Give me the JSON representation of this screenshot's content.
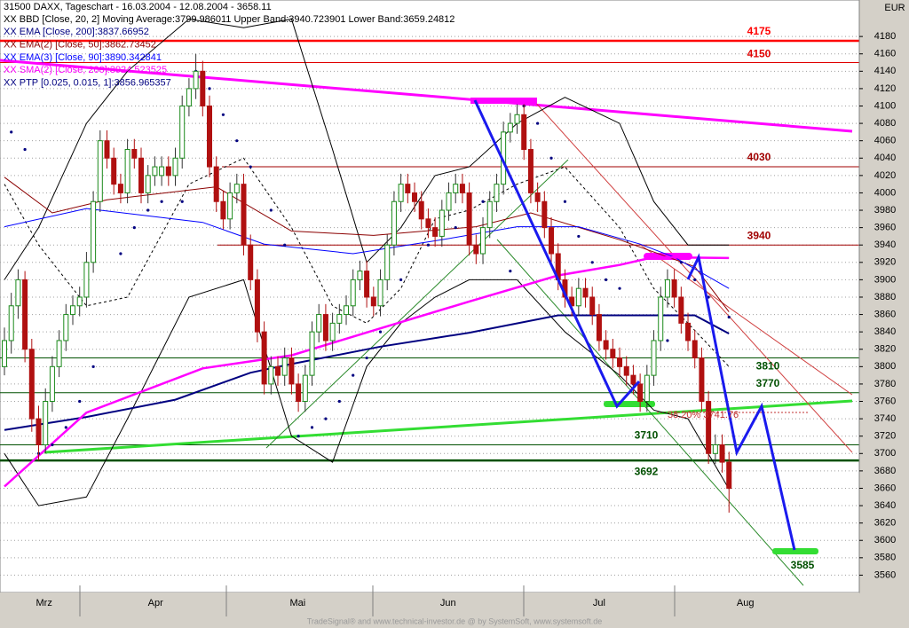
{
  "chart_data": {
    "type": "candlestick",
    "title": "31500  DAXX, Tageschart - 16.03.2004 - 12.08.2004 - 3658.11",
    "unit": "EUR",
    "footer": "TradeSignal® and www.technical-investor.de @ by SystemSoft, www.systemsoft.de",
    "up_color": "#1a8a1a",
    "down_color": "#b01010",
    "ylim": [
      3540,
      4222
    ],
    "xlim": [
      -0.65,
      125.06
    ],
    "yticks": [
      3560,
      3580,
      3600,
      3620,
      3640,
      3660,
      3680,
      3700,
      3720,
      3740,
      3760,
      3780,
      3800,
      3820,
      3840,
      3860,
      3880,
      3900,
      3920,
      3940,
      3960,
      3980,
      4000,
      4020,
      4040,
      4060,
      4080,
      4100,
      4120,
      4140,
      4160,
      4180
    ],
    "xticks": [
      {
        "value": 5.8,
        "label": "Mrz"
      },
      {
        "value": 22.1,
        "label": "Apr"
      },
      {
        "value": 42.9,
        "label": "Mai"
      },
      {
        "value": 64.9,
        "label": "Jun"
      },
      {
        "value": 87,
        "label": "Jul"
      },
      {
        "value": 108.4,
        "label": "Aug"
      }
    ],
    "grid": true,
    "ohlc": [
      [
        3800,
        3845,
        3790,
        3830
      ],
      [
        3830,
        3885,
        3815,
        3870
      ],
      [
        3870,
        3912,
        3855,
        3900
      ],
      [
        3900,
        3910,
        3805,
        3820
      ],
      [
        3820,
        3832,
        3725,
        3740
      ],
      [
        3740,
        3755,
        3692,
        3710
      ],
      [
        3710,
        3775,
        3700,
        3760
      ],
      [
        3760,
        3812,
        3748,
        3800
      ],
      [
        3800,
        3842,
        3788,
        3830
      ],
      [
        3830,
        3872,
        3818,
        3860
      ],
      [
        3860,
        3882,
        3848,
        3870
      ],
      [
        3870,
        3892,
        3858,
        3880
      ],
      [
        3880,
        3932,
        3868,
        3920
      ],
      [
        3920,
        4002,
        3908,
        3990
      ],
      [
        3990,
        4072,
        3978,
        4060
      ],
      [
        4060,
        4072,
        4028,
        4040
      ],
      [
        4040,
        4052,
        3998,
        4010
      ],
      [
        4010,
        4022,
        3988,
        4000
      ],
      [
        4000,
        4062,
        3988,
        4050
      ],
      [
        4050,
        4062,
        4028,
        4040
      ],
      [
        4040,
        4052,
        3988,
        4000
      ],
      [
        4000,
        4032,
        3988,
        4020
      ],
      [
        4020,
        4042,
        4008,
        4030
      ],
      [
        4020,
        4042,
        4008,
        4030
      ],
      [
        4030,
        4042,
        4008,
        4020
      ],
      [
        4020,
        4052,
        4008,
        4040
      ],
      [
        4040,
        4112,
        4028,
        4100
      ],
      [
        4100,
        4132,
        4088,
        4120
      ],
      [
        4120,
        4160,
        4108,
        4140
      ],
      [
        4140,
        4152,
        4088,
        4100
      ],
      [
        4100,
        4112,
        4018,
        4030
      ],
      [
        4030,
        4042,
        3978,
        3990
      ],
      [
        3990,
        4002,
        3958,
        3970
      ],
      [
        3970,
        4012,
        3958,
        4000
      ],
      [
        4000,
        4022,
        3988,
        4010
      ],
      [
        4010,
        4022,
        3928,
        3940
      ],
      [
        3940,
        3952,
        3888,
        3900
      ],
      [
        3900,
        3912,
        3828,
        3840
      ],
      [
        3840,
        3852,
        3768,
        3780
      ],
      [
        3780,
        3812,
        3768,
        3800
      ],
      [
        3800,
        3812,
        3778,
        3790
      ],
      [
        3790,
        3822,
        3778,
        3810
      ],
      [
        3810,
        3822,
        3768,
        3780
      ],
      [
        3780,
        3792,
        3748,
        3760
      ],
      [
        3760,
        3802,
        3748,
        3790
      ],
      [
        3790,
        3852,
        3778,
        3840
      ],
      [
        3840,
        3872,
        3828,
        3860
      ],
      [
        3860,
        3872,
        3818,
        3830
      ],
      [
        3830,
        3862,
        3818,
        3850
      ],
      [
        3850,
        3872,
        3838,
        3860
      ],
      [
        3860,
        3882,
        3848,
        3870
      ],
      [
        3870,
        3912,
        3858,
        3900
      ],
      [
        3900,
        3922,
        3888,
        3910
      ],
      [
        3910,
        3922,
        3868,
        3880
      ],
      [
        3880,
        3892,
        3858,
        3870
      ],
      [
        3870,
        3912,
        3858,
        3900
      ],
      [
        3900,
        3952,
        3888,
        3940
      ],
      [
        3940,
        4002,
        3928,
        3990
      ],
      [
        3990,
        4022,
        3978,
        4010
      ],
      [
        4010,
        4022,
        3988,
        4000
      ],
      [
        4000,
        4012,
        3978,
        3990
      ],
      [
        3990,
        4002,
        3958,
        3970
      ],
      [
        3970,
        3982,
        3948,
        3960
      ],
      [
        3960,
        3972,
        3938,
        3950
      ],
      [
        3950,
        3992,
        3938,
        3980
      ],
      [
        3980,
        4012,
        3968,
        4000
      ],
      [
        4000,
        4022,
        3988,
        4010
      ],
      [
        4010,
        4022,
        3988,
        4000
      ],
      [
        4000,
        4012,
        3928,
        3940
      ],
      [
        3940,
        3952,
        3918,
        3930
      ],
      [
        3930,
        3972,
        3918,
        3960
      ],
      [
        3960,
        4002,
        3948,
        3990
      ],
      [
        3990,
        4022,
        3978,
        4010
      ],
      [
        4010,
        4082,
        3998,
        4070
      ],
      [
        4070,
        4092,
        4058,
        4080
      ],
      [
        4080,
        4102,
        4068,
        4090
      ],
      [
        4090,
        4102,
        4038,
        4050
      ],
      [
        4050,
        4062,
        3988,
        4000
      ],
      [
        4000,
        4012,
        3978,
        3990
      ],
      [
        3990,
        4002,
        3948,
        3960
      ],
      [
        3960,
        3972,
        3918,
        3930
      ],
      [
        3930,
        3942,
        3888,
        3900
      ],
      [
        3900,
        3912,
        3868,
        3880
      ],
      [
        3880,
        3892,
        3858,
        3870
      ],
      [
        3870,
        3902,
        3858,
        3890
      ],
      [
        3890,
        3902,
        3868,
        3880
      ],
      [
        3880,
        3892,
        3848,
        3860
      ],
      [
        3860,
        3872,
        3818,
        3830
      ],
      [
        3830,
        3842,
        3808,
        3820
      ],
      [
        3820,
        3832,
        3798,
        3810
      ],
      [
        3810,
        3822,
        3788,
        3800
      ],
      [
        3800,
        3812,
        3778,
        3790
      ],
      [
        3790,
        3802,
        3768,
        3780
      ],
      [
        3780,
        3792,
        3748,
        3760
      ],
      [
        3760,
        3802,
        3748,
        3790
      ],
      [
        3790,
        3842,
        3778,
        3830
      ],
      [
        3830,
        3892,
        3818,
        3880
      ],
      [
        3880,
        3912,
        3868,
        3900
      ],
      [
        3900,
        3912,
        3868,
        3880
      ],
      [
        3880,
        3892,
        3838,
        3850
      ],
      [
        3850,
        3862,
        3818,
        3830
      ],
      [
        3830,
        3842,
        3798,
        3810
      ],
      [
        3810,
        3822,
        3748,
        3760
      ],
      [
        3760,
        3772,
        3688,
        3700
      ],
      [
        3700,
        3722,
        3688,
        3710
      ],
      [
        3710,
        3722,
        3678,
        3690
      ],
      [
        3690,
        3702,
        3632,
        3660
      ]
    ],
    "series": [
      {
        "name": "XX BBD [Close, 20, 2] Moving Average:3799.986011 Upper Band:3940.723901 Lower Band:3659.24812",
        "color": "#000000",
        "style": "band",
        "x": [
          0,
          5,
          12,
          18,
          27,
          35,
          42,
          48,
          53,
          58,
          63,
          68,
          75,
          82,
          90,
          95,
          100,
          106
        ],
        "values": [
          3900,
          3960,
          4080,
          4140,
          4200,
          4190,
          4200,
          4050,
          3920,
          3960,
          4020,
          4030,
          4080,
          4110,
          4080,
          3990,
          3940,
          3940
        ],
        "middle": [
          4010,
          3940,
          3870,
          3880,
          4010,
          4040,
          3960,
          3870,
          3850,
          3890,
          3970,
          3980,
          4010,
          4030,
          3960,
          3890,
          3850,
          3800
        ],
        "lower": [
          3700,
          3640,
          3650,
          3740,
          3880,
          3900,
          3720,
          3690,
          3800,
          3850,
          3880,
          3900,
          3900,
          3840,
          3790,
          3750,
          3740,
          3659
        ]
      },
      {
        "name": "XX EMA [Close, 200]:3837.66952",
        "color": "#000080",
        "style": "line",
        "width": 2,
        "x": [
          0,
          12,
          25,
          36,
          42,
          55,
          68,
          81,
          90,
          101,
          106
        ],
        "values": [
          3727,
          3742,
          3762,
          3793,
          3803,
          3823,
          3839,
          3859,
          3859,
          3859,
          3838
        ]
      },
      {
        "name": "XX EMA(2) [Close, 50]:3862.73452",
        "color": "#8b0000",
        "style": "line",
        "width": 1,
        "x": [
          0,
          7,
          15,
          31,
          42,
          54,
          69,
          77,
          90,
          101,
          106
        ],
        "values": [
          4018,
          3977,
          3992,
          4007,
          3956,
          3951,
          3961,
          3977,
          3946,
          3915,
          3863
        ]
      },
      {
        "name": "XX EMA(3) [Close, 90]:3890.342841",
        "color": "#0000ff",
        "style": "line",
        "width": 1,
        "x": [
          0,
          12,
          29,
          38,
          51,
          64,
          75,
          84,
          93,
          98,
          106
        ],
        "values": [
          3961,
          3982,
          3966,
          3941,
          3930,
          3946,
          3961,
          3961,
          3941,
          3926,
          3890
        ]
      },
      {
        "name": "XX SMA(2) [Close, 200]:3924.523525",
        "color": "#ff00ff",
        "style": "line",
        "width": 2.5,
        "x": [
          0,
          12,
          29,
          42,
          55,
          68,
          81,
          90,
          95,
          106
        ],
        "values": [
          3662,
          3747,
          3798,
          3813,
          3844,
          3875,
          3905,
          3917,
          3926,
          3925
        ]
      },
      {
        "name": "XX PTP [0.025, 0.015, 1]:3856.965357",
        "color": "#000080",
        "style": "dots",
        "x": [
          1,
          3,
          5,
          7,
          9,
          11,
          13,
          17,
          19,
          21,
          23,
          26,
          28,
          30,
          32,
          34,
          36,
          39,
          41,
          43,
          45,
          47,
          49,
          51,
          53,
          55,
          58,
          62,
          66,
          70,
          74,
          76,
          78,
          80,
          82,
          84,
          86,
          88,
          90,
          92,
          95,
          97,
          99,
          101,
          103,
          106
        ],
        "values": [
          4070,
          4050,
          3700,
          3710,
          3730,
          3760,
          3800,
          3930,
          3960,
          3980,
          3990,
          3990,
          4140,
          4120,
          4090,
          4060,
          4030,
          3980,
          3940,
          3720,
          3730,
          3740,
          3760,
          3790,
          3810,
          3840,
          3900,
          3940,
          3960,
          3990,
          3910,
          4100,
          4080,
          4040,
          3990,
          3950,
          3920,
          3900,
          3890,
          3780,
          3800,
          3830,
          3920,
          3900,
          3880,
          3857
        ]
      }
    ],
    "levels": [
      {
        "value": 4175,
        "color": "#ff0000",
        "width": 2.5
      },
      {
        "value": 4150,
        "color": "#e00000",
        "width": 1
      },
      {
        "value": 4030,
        "color": "#a00000",
        "width": 1
      },
      {
        "value": 3940,
        "color": "#a00000",
        "width": 1
      },
      {
        "value": 3810,
        "color": "#005000",
        "width": 1
      },
      {
        "value": 3770,
        "color": "#005000",
        "width": 1
      },
      {
        "value": 3710,
        "color": "#005000",
        "width": 1
      },
      {
        "value": 3692,
        "color": "#005000",
        "width": 2.5
      }
    ],
    "target": 3585,
    "fib_label": "38.20% 3741.76"
  }
}
